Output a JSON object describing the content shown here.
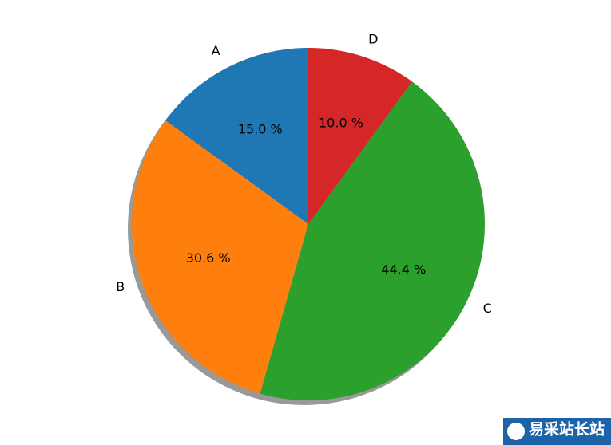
{
  "chart_data": {
    "type": "pie",
    "categories": [
      "A",
      "B",
      "C",
      "D"
    ],
    "values": [
      15.0,
      30.6,
      44.4,
      10.0
    ],
    "value_labels": [
      "15.0 %",
      "30.6 %",
      "44.4 %",
      "10.0 %"
    ],
    "colors": [
      "#1f77b4",
      "#ff7f0e",
      "#2ca02c",
      "#d62728"
    ],
    "start_angle": 90,
    "shadow": true
  },
  "watermark": "易采站长站"
}
